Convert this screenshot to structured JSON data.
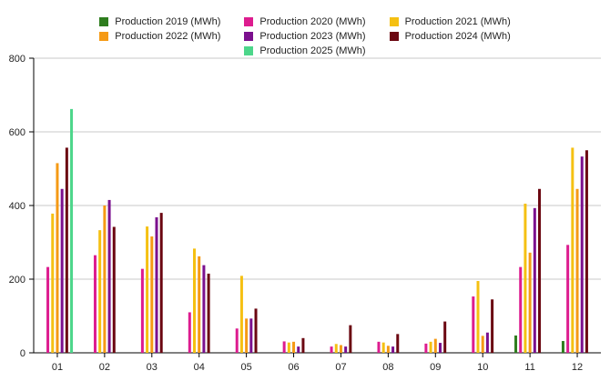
{
  "chart_data": {
    "type": "bar",
    "title": "",
    "xlabel": "",
    "ylabel": "",
    "ylim": [
      0,
      800
    ],
    "yticks": [
      0,
      200,
      400,
      600,
      800
    ],
    "grid": "horizontal",
    "legend_position": "top",
    "categories": [
      "01",
      "02",
      "03",
      "04",
      "05",
      "06",
      "07",
      "08",
      "09",
      "10",
      "11",
      "12"
    ],
    "series": [
      {
        "name": "Production 2019 (MWh)",
        "color": "#2e7d1e",
        "values": [
          null,
          null,
          null,
          null,
          null,
          null,
          null,
          null,
          null,
          null,
          47,
          32
        ]
      },
      {
        "name": "Production 2020 (MWh)",
        "color": "#dd1c8f",
        "values": [
          233,
          265,
          228,
          110,
          66,
          31,
          17,
          30,
          25,
          153,
          233,
          293
        ]
      },
      {
        "name": "Production 2021 (MWh)",
        "color": "#f5c012",
        "values": [
          378,
          333,
          343,
          283,
          209,
          28,
          24,
          28,
          30,
          195,
          405,
          557
        ]
      },
      {
        "name": "Production 2022 (MWh)",
        "color": "#f59a15",
        "values": [
          515,
          400,
          316,
          262,
          93,
          30,
          21,
          19,
          38,
          46,
          272,
          445
        ]
      },
      {
        "name": "Production 2023 (MWh)",
        "color": "#7b108e",
        "values": [
          445,
          415,
          368,
          238,
          93,
          17,
          17,
          17,
          27,
          55,
          393,
          533
        ]
      },
      {
        "name": "Production 2024 (MWh)",
        "color": "#6b0711",
        "values": [
          557,
          342,
          380,
          215,
          120,
          40,
          75,
          51,
          85,
          145,
          445,
          550
        ]
      },
      {
        "name": "Production 2025 (MWh)",
        "color": "#4cd68a",
        "values": [
          662,
          null,
          null,
          null,
          null,
          null,
          null,
          null,
          null,
          null,
          null,
          null
        ]
      }
    ]
  }
}
